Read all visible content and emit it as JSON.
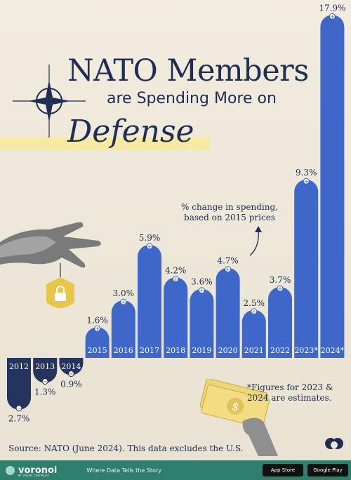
{
  "title": {
    "line1": "NATO Members",
    "line2": "are Spending More on",
    "line3": "Defense"
  },
  "annotation": "% change in spending, based on 2015 prices",
  "footnote": "*Figures for 2023 & 2024 are estimates.",
  "source": "Source: NATO (June 2024). This data excludes the U.S.",
  "footer": {
    "brand": "voronoi",
    "brand_sub": "BY VISUAL CAPITALIST",
    "tagline": "Where Data Tells the Story",
    "app_store": "App Store",
    "google_play": "Google Play"
  },
  "colors": {
    "positive_bar": "#3f67c9",
    "negative_bar": "#25335f",
    "highlight": "#f6e99a",
    "text": "#1f2d55",
    "footer": "#2e7f6e"
  },
  "chart_data": {
    "type": "bar",
    "categories": [
      "2012",
      "2013",
      "2014",
      "2015",
      "2016",
      "2017",
      "2018",
      "2019",
      "2020",
      "2021",
      "2022",
      "2023*",
      "2024*"
    ],
    "values": [
      -2.7,
      -1.3,
      -0.9,
      1.6,
      3.0,
      5.9,
      4.2,
      3.6,
      4.7,
      2.5,
      3.7,
      9.3,
      17.9
    ],
    "labels": [
      "2.7%",
      "1.3%",
      "0.9%",
      "1.6%",
      "3.0%",
      "5.9%",
      "4.2%",
      "3.6%",
      "4.7%",
      "2.5%",
      "3.7%",
      "9.3%",
      "17.9%"
    ],
    "title": "NATO Members are Spending More on Defense",
    "ylabel": "% change in spending, based on 2015 prices",
    "ylim": [
      -2.7,
      17.9
    ]
  }
}
